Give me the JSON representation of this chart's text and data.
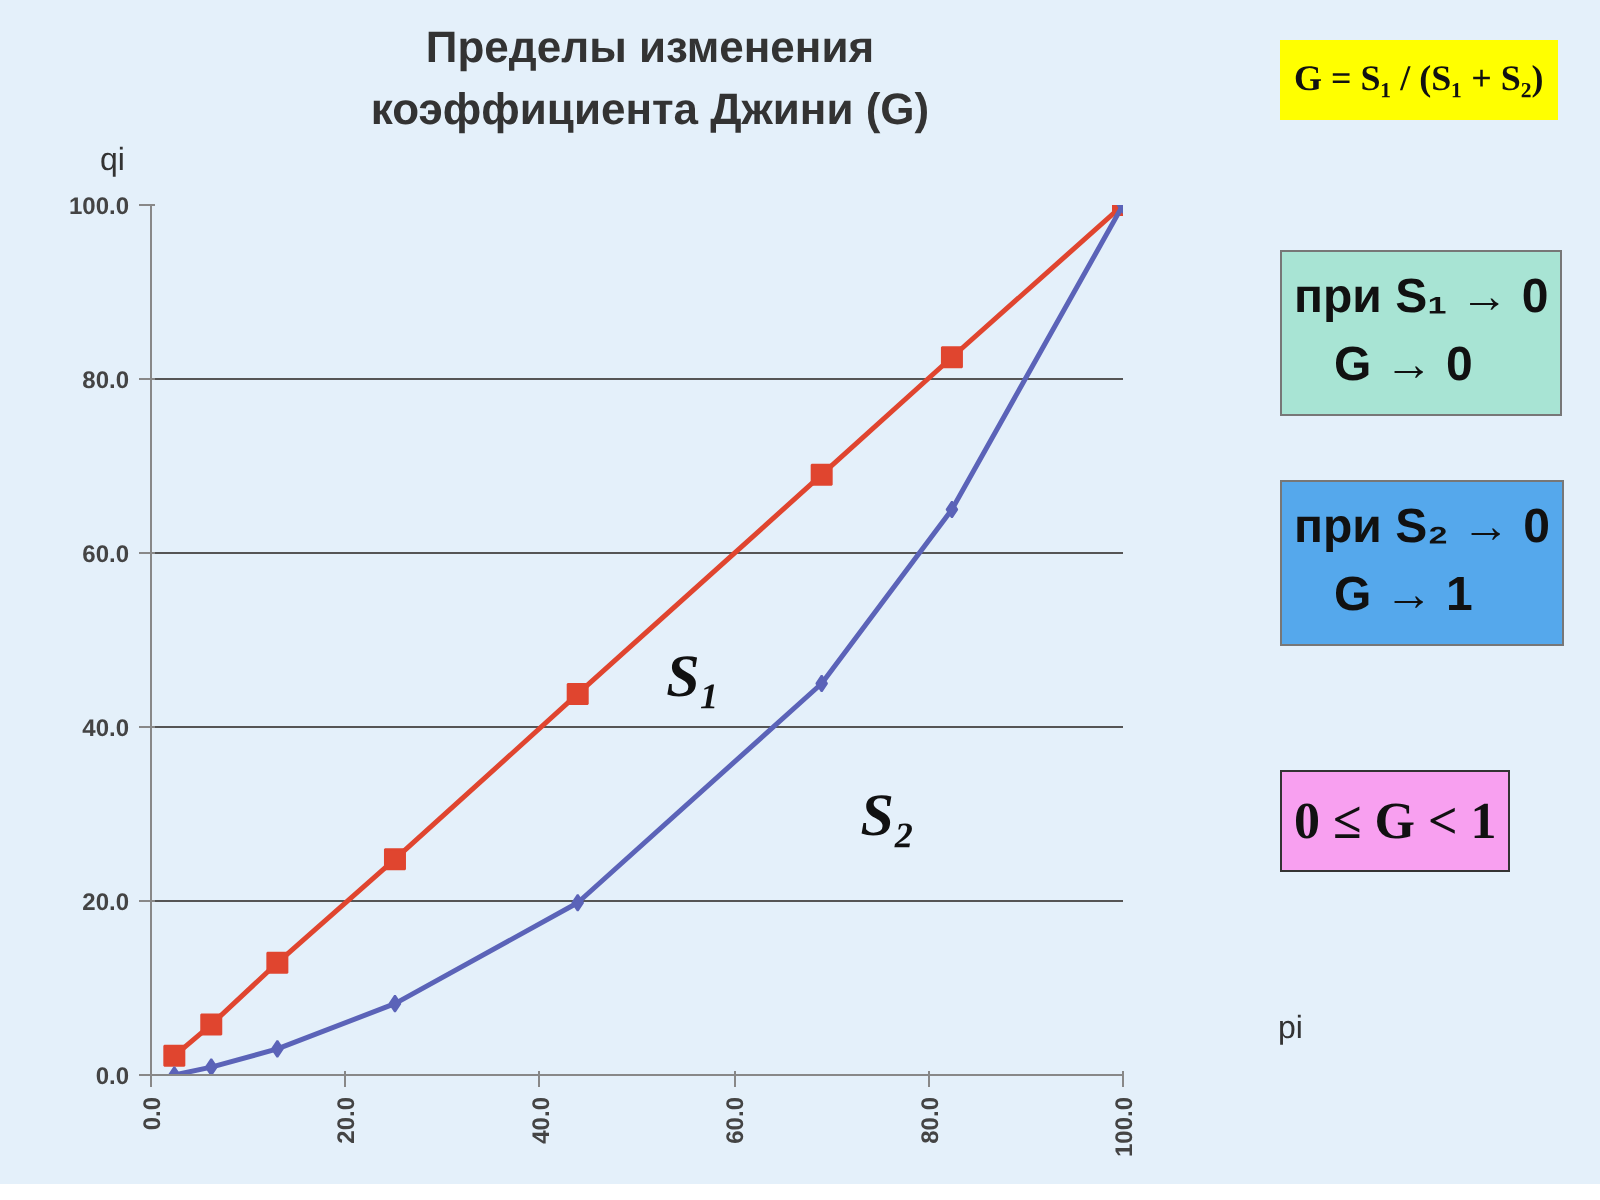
{
  "chart_data": {
    "type": "line",
    "title": "Пределы изменения\nкоэффициента Джини (G)",
    "xlabel": "pi",
    "ylabel": "qi",
    "x": [
      2.4,
      6.2,
      13,
      25.1,
      43.9,
      69,
      82.4,
      100
    ],
    "series": [
      {
        "color": "#e0452f",
        "marker": "square",
        "values": [
          2.2,
          5.8,
          12.9,
          24.8,
          43.8,
          69,
          82.5,
          100
        ]
      },
      {
        "color": "#5b63b8",
        "marker": "diamond",
        "values": [
          0,
          0.9,
          3,
          8.2,
          19.8,
          45,
          65,
          100
        ]
      }
    ],
    "xlim": [
      0,
      100
    ],
    "ylim": [
      0,
      100
    ],
    "xticks": [
      {
        "value": 0,
        "label": "0.0"
      },
      {
        "value": 20,
        "label": "20.0"
      },
      {
        "value": 40,
        "label": "40.0"
      },
      {
        "value": 60,
        "label": "60.0"
      },
      {
        "value": 80,
        "label": "80.0"
      },
      {
        "value": 100,
        "label": "100.0"
      }
    ],
    "yticks": [
      {
        "value": 0,
        "label": "0.0"
      },
      {
        "value": 20,
        "label": "20.0"
      },
      {
        "value": 40,
        "label": "40.0"
      },
      {
        "value": 60,
        "label": "60.0"
      },
      {
        "value": 80,
        "label": "80.0"
      },
      {
        "value": 100,
        "label": "100.0"
      }
    ],
    "grid": "y",
    "line_style": "solid",
    "annotations": [
      "S₁",
      "S₂",
      "G = S₁ / (S₁ + S₂)",
      "при S₁ → 0\nG → 0",
      "при S₂ → 0\nG → 1",
      "0 ≤ G < 1"
    ]
  }
}
